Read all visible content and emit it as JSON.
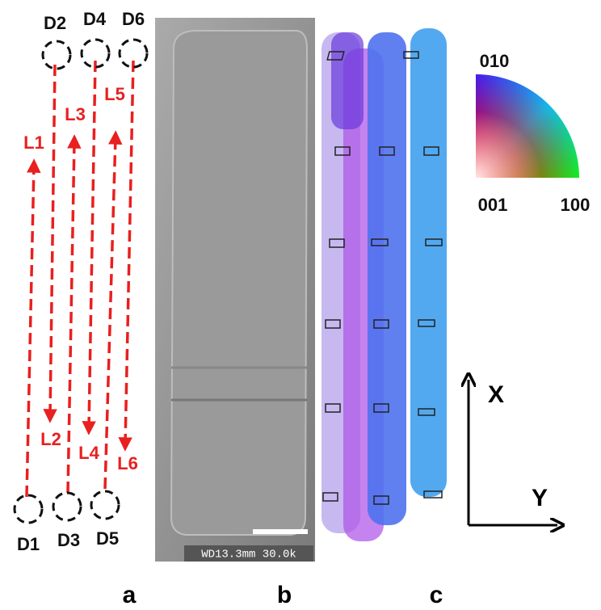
{
  "panel_a": {
    "label": "a",
    "points": [
      "D1",
      "D2",
      "D3",
      "D4",
      "D5",
      "D6"
    ],
    "lines": [
      "L1",
      "L2",
      "L3",
      "L4",
      "L5",
      "L6"
    ]
  },
  "panel_b": {
    "label": "b",
    "caption": "WD13.3mm 30.0k"
  },
  "panel_c": {
    "label": "c",
    "key": {
      "top": "010",
      "left": "001",
      "right": "100"
    },
    "axes": {
      "x": "X",
      "y": "Y"
    }
  }
}
